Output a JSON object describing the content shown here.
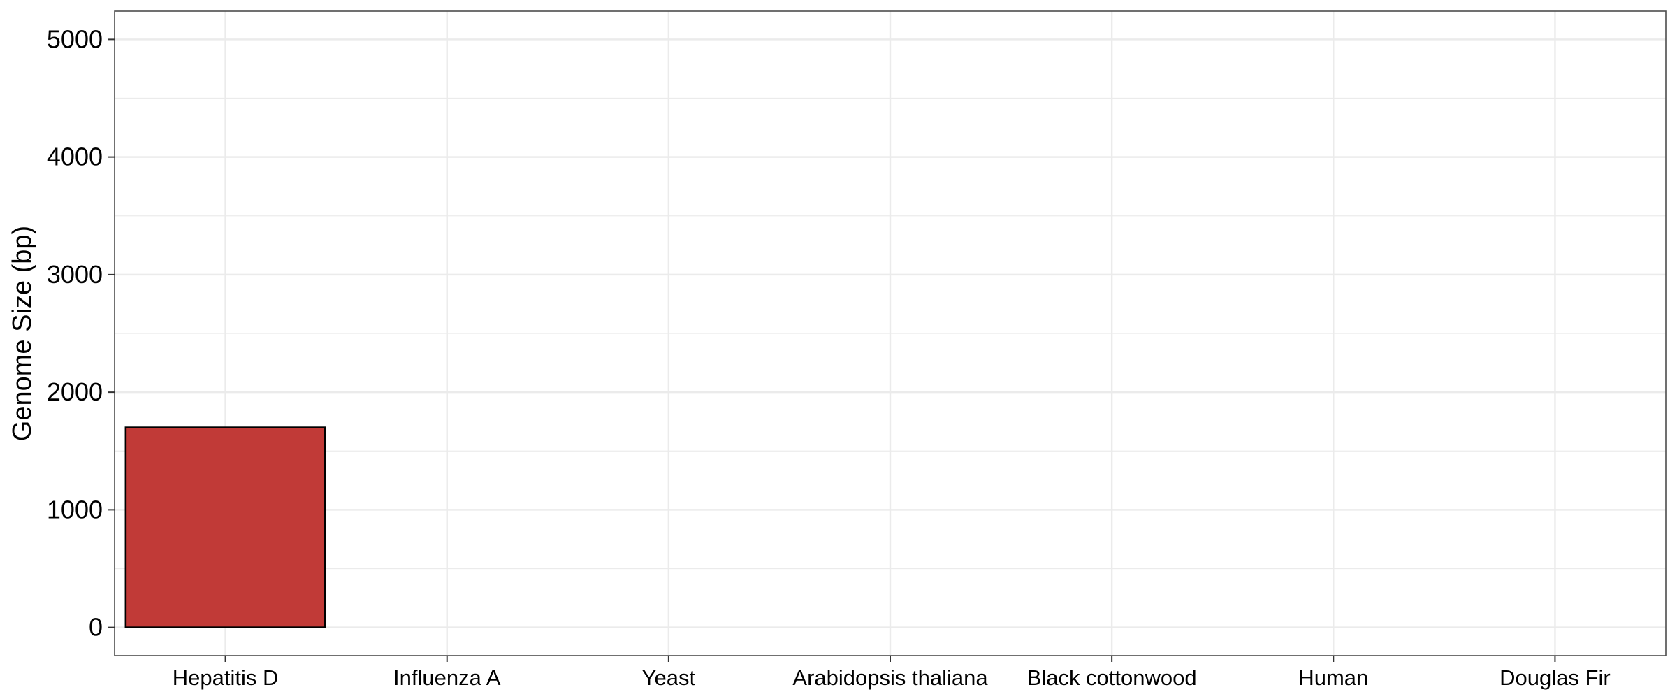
{
  "chart_data": {
    "type": "bar",
    "categories": [
      "Hepatitis D",
      "Influenza A",
      "Yeast",
      "Arabidopsis thaliana",
      "Black cottonwood",
      "Human",
      "Douglas Fir"
    ],
    "values": [
      1700,
      null,
      null,
      null,
      null,
      null,
      null
    ],
    "title": "",
    "xlabel": "",
    "ylabel": "Genome Size (bp)",
    "ylim": [
      -240,
      5240
    ],
    "yticks": [
      0,
      1000,
      2000,
      3000,
      4000,
      5000
    ],
    "grid": true,
    "legend": "none",
    "colors": {
      "bar": "#c13a37",
      "bar_outline": "#000000",
      "grid": "#ebebeb",
      "panel_border": "#4d4d4d"
    }
  }
}
